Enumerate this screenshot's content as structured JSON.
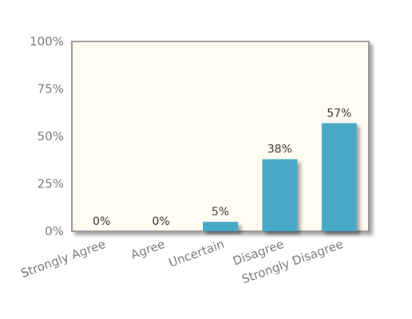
{
  "chart_data": {
    "type": "bar",
    "categories": [
      "Strongly Agree",
      "Agree",
      "Uncertain",
      "Disagree",
      "Strongly Disagree"
    ],
    "values": [
      0,
      0,
      5,
      38,
      57
    ],
    "data_labels": [
      "0%",
      "0%",
      "5%",
      "38%",
      "57%"
    ],
    "y_ticks": [
      "0%",
      "25%",
      "50%",
      "75%",
      "100%"
    ],
    "ylim": [
      0,
      100
    ],
    "title": "",
    "xlabel": "",
    "ylabel": "",
    "grid": false,
    "legend": "none",
    "colors": {
      "bar": "#46a9c6",
      "plot_background": "#fffcf2",
      "axis": "#999999",
      "tick_text": "#777777",
      "label_text": "#333333"
    }
  }
}
